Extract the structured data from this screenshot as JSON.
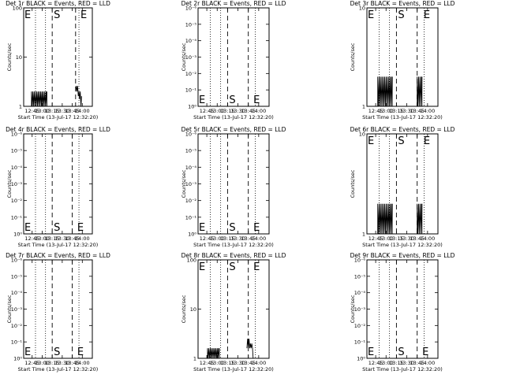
{
  "chart_data": [
    {
      "type": "line",
      "title": "Det 1r BLACK = Events, RED = LLD",
      "xlabel": "Start Time (13-Jul-17 12:32:20)",
      "ylabel": "Counts/sec",
      "yscale": "log",
      "yticks": [
        "1",
        "10",
        "100"
      ],
      "ylim": [
        1,
        100
      ],
      "xticks": [
        "12:45",
        "13:00",
        "13:15",
        "13:30",
        "13:45",
        "14:00"
      ],
      "xlim": [
        "12:32:20",
        "14:15"
      ],
      "markers": [
        {
          "text": "E",
          "x": "12:32:20"
        },
        {
          "text": "S",
          "x": "13:15"
        },
        {
          "text": "E",
          "x": "13:55"
        }
      ],
      "dotted_lines": [
        "12:50",
        "13:05",
        "13:55"
      ],
      "dashed_lines": [
        "13:15",
        "13:50"
      ],
      "series": [
        {
          "color": "#000000",
          "segments": [
            [
              [
                "12:44",
                1
              ],
              [
                "12:44",
                2
              ],
              [
                "12:45",
                1
              ],
              [
                "12:46",
                2
              ],
              [
                "12:47",
                1
              ],
              [
                "12:48",
                2
              ],
              [
                "12:49",
                1
              ],
              [
                "12:50",
                2
              ],
              [
                "12:51",
                1
              ],
              [
                "12:52",
                2
              ],
              [
                "12:53",
                1
              ],
              [
                "12:54",
                2
              ],
              [
                "12:55",
                1
              ],
              [
                "12:56",
                2
              ],
              [
                "12:57",
                1
              ],
              [
                "12:58",
                2
              ],
              [
                "12:59",
                1
              ],
              [
                "13:00",
                2
              ],
              [
                "13:01",
                1
              ],
              [
                "13:02",
                2
              ],
              [
                "13:03",
                1
              ],
              [
                "13:04",
                2
              ],
              [
                "13:05",
                1
              ],
              [
                "13:06",
                2
              ],
              [
                "13:07",
                1
              ],
              [
                "13:07",
                2
              ]
            ],
            [
              [
                "13:50",
                2
              ],
              [
                "13:51",
                2.6
              ],
              [
                "13:52",
                2
              ],
              [
                "13:53",
                2.6
              ],
              [
                "13:54",
                1.6
              ],
              [
                "13:55",
                2
              ],
              [
                "13:56",
                1.4
              ],
              [
                "13:57",
                2
              ],
              [
                "13:58",
                1
              ],
              [
                "13:59",
                1.6
              ]
            ]
          ]
        }
      ]
    },
    {
      "type": "line",
      "title": "Det 2r BLACK = Events, RED = LLD",
      "xlabel": "Start Time (13-Jul-17 12:32:20)",
      "ylabel": "Counts/sec",
      "yscale": "log",
      "yticks": [
        "10⁰",
        "10⁻¹",
        "10⁻²",
        "10⁻³",
        "10⁻⁴",
        "10⁻⁵",
        "10⁻⁶"
      ],
      "ylim": [
        1,
        1000000
      ],
      "xticks": [
        "12:45",
        "13:00",
        "13:15",
        "13:30",
        "13:45",
        "14:00"
      ],
      "xlim": [
        "12:32:20",
        "14:15"
      ],
      "markers": [
        {
          "text": "E",
          "x": "12:32:20"
        },
        {
          "text": "S",
          "x": "13:15"
        },
        {
          "text": "E",
          "x": "13:50"
        }
      ],
      "dotted_lines": [
        "12:50",
        "13:05",
        "13:55"
      ],
      "dashed_lines": [
        "13:15",
        "13:45"
      ],
      "series": []
    },
    {
      "type": "line",
      "title": "Det 3r BLACK = Events, RED = LLD",
      "xlabel": "Start Time (13-Jul-17 12:32:20)",
      "ylabel": "Counts/sec",
      "yscale": "log",
      "yticks": [
        "1",
        "10"
      ],
      "ylim": [
        1,
        10
      ],
      "xticks": [
        "12:45",
        "13:00",
        "13:15",
        "13:30",
        "13:45",
        "14:00"
      ],
      "xlim": [
        "12:32:20",
        "14:15"
      ],
      "markers": [
        {
          "text": "E",
          "x": "12:32:20"
        },
        {
          "text": "S",
          "x": "13:15"
        },
        {
          "text": "E",
          "x": "13:52"
        }
      ],
      "dotted_lines": [
        "12:50",
        "13:05",
        "13:55"
      ],
      "dashed_lines": [
        "13:15",
        "13:45"
      ],
      "series": [
        {
          "color": "#000000",
          "segments": [
            [
              [
                "12:48",
                1
              ],
              [
                "12:48",
                2
              ],
              [
                "12:49",
                1
              ],
              [
                "12:50",
                2
              ],
              [
                "12:51",
                1
              ],
              [
                "12:52",
                2
              ],
              [
                "12:53",
                1
              ],
              [
                "12:54",
                2
              ],
              [
                "12:55",
                1
              ],
              [
                "12:56",
                2
              ],
              [
                "12:57",
                1
              ],
              [
                "12:58",
                2
              ],
              [
                "12:59",
                1
              ],
              [
                "13:00",
                2
              ],
              [
                "13:01",
                1
              ],
              [
                "13:02",
                2
              ],
              [
                "13:03",
                1
              ],
              [
                "13:04",
                2
              ],
              [
                "13:05",
                1
              ],
              [
                "13:06",
                2
              ],
              [
                "13:07",
                1
              ],
              [
                "13:08",
                2
              ],
              [
                "13:09",
                1
              ],
              [
                "13:09",
                2
              ]
            ],
            [
              [
                "13:45",
                1
              ],
              [
                "13:45",
                2
              ],
              [
                "13:46",
                1
              ],
              [
                "13:47",
                2
              ],
              [
                "13:48",
                1
              ],
              [
                "13:49",
                2
              ],
              [
                "13:50",
                1
              ],
              [
                "13:51",
                2
              ],
              [
                "13:52",
                1
              ],
              [
                "13:52",
                2
              ]
            ]
          ]
        }
      ]
    },
    {
      "type": "line",
      "title": "Det 4r BLACK = Events, RED = LLD",
      "xlabel": "Start Time (13-Jul-17 12:32:20)",
      "ylabel": "Counts/sec",
      "yscale": "log",
      "yticks": [
        "10⁰",
        "10⁻¹",
        "10⁻²",
        "10⁻³",
        "10⁻⁴",
        "10⁻⁵",
        "10⁻⁶"
      ],
      "ylim": [
        1,
        1000000
      ],
      "xticks": [
        "12:45",
        "13:00",
        "13:15",
        "13:30",
        "13:45",
        "14:00"
      ],
      "xlim": [
        "12:32:20",
        "14:15"
      ],
      "markers": [
        {
          "text": "E",
          "x": "12:32:20"
        },
        {
          "text": "S",
          "x": "13:15"
        },
        {
          "text": "E",
          "x": "13:50"
        }
      ],
      "dotted_lines": [
        "12:50",
        "13:05",
        "13:55"
      ],
      "dashed_lines": [
        "13:15",
        "13:45"
      ],
      "series": []
    },
    {
      "type": "line",
      "title": "Det 5r BLACK = Events, RED = LLD",
      "xlabel": "Start Time (13-Jul-17 12:32:20)",
      "ylabel": "Counts/sec",
      "yscale": "log",
      "yticks": [
        "10⁰",
        "10⁻¹",
        "10⁻²",
        "10⁻³",
        "10⁻⁴",
        "10⁻⁵",
        "10⁻⁶"
      ],
      "ylim": [
        1,
        1000000
      ],
      "xticks": [
        "12:45",
        "13:00",
        "13:15",
        "13:30",
        "13:45",
        "14:00"
      ],
      "xlim": [
        "12:32:20",
        "14:15"
      ],
      "markers": [
        {
          "text": "E",
          "x": "12:32:20"
        },
        {
          "text": "S",
          "x": "13:15"
        },
        {
          "text": "E",
          "x": "13:50"
        }
      ],
      "dotted_lines": [
        "12:50",
        "13:05",
        "13:55"
      ],
      "dashed_lines": [
        "13:15",
        "13:45"
      ],
      "series": []
    },
    {
      "type": "line",
      "title": "Det 6r BLACK = Events, RED = LLD",
      "xlabel": "Start Time (13-Jul-17 12:32:20)",
      "ylabel": "Counts/sec",
      "yscale": "log",
      "yticks": [
        "1",
        "10"
      ],
      "ylim": [
        1,
        10
      ],
      "xticks": [
        "12:45",
        "13:00",
        "13:15",
        "13:30",
        "13:45",
        "14:00"
      ],
      "xlim": [
        "12:32:20",
        "14:15"
      ],
      "markers": [
        {
          "text": "E",
          "x": "12:32:20"
        },
        {
          "text": "S",
          "x": "13:15"
        },
        {
          "text": "E",
          "x": "13:52"
        }
      ],
      "dotted_lines": [
        "12:50",
        "13:05",
        "13:55"
      ],
      "dashed_lines": [
        "13:15",
        "13:45"
      ],
      "series": [
        {
          "color": "#000000",
          "segments": [
            [
              [
                "12:48",
                1
              ],
              [
                "12:48",
                2
              ],
              [
                "12:49",
                1
              ],
              [
                "12:50",
                2
              ],
              [
                "12:51",
                1
              ],
              [
                "12:52",
                2
              ],
              [
                "12:53",
                1
              ],
              [
                "12:54",
                2
              ],
              [
                "12:55",
                1
              ],
              [
                "12:56",
                2
              ],
              [
                "12:57",
                1
              ],
              [
                "12:58",
                2
              ],
              [
                "12:59",
                1
              ],
              [
                "13:00",
                2
              ],
              [
                "13:01",
                1
              ],
              [
                "13:02",
                2
              ],
              [
                "13:03",
                1
              ],
              [
                "13:04",
                2
              ],
              [
                "13:05",
                1
              ],
              [
                "13:06",
                2
              ],
              [
                "13:07",
                1
              ],
              [
                "13:08",
                2
              ],
              [
                "13:09",
                1
              ],
              [
                "13:09",
                2
              ]
            ],
            [
              [
                "13:45",
                1
              ],
              [
                "13:45",
                2
              ],
              [
                "13:46",
                1
              ],
              [
                "13:47",
                2
              ],
              [
                "13:48",
                1
              ],
              [
                "13:49",
                2
              ],
              [
                "13:50",
                1
              ],
              [
                "13:51",
                2
              ],
              [
                "13:52",
                1
              ],
              [
                "13:52",
                2
              ]
            ]
          ]
        }
      ]
    },
    {
      "type": "line",
      "title": "Det 7r BLACK = Events, RED = LLD",
      "xlabel": "Start Time (13-Jul-17 12:32:20)",
      "ylabel": "Counts/sec",
      "yscale": "log",
      "yticks": [
        "10⁰",
        "10⁻¹",
        "10⁻²",
        "10⁻³",
        "10⁻⁴",
        "10⁻⁵",
        "10⁻⁶"
      ],
      "ylim": [
        1,
        1000000
      ],
      "xticks": [
        "12:45",
        "13:00",
        "13:15",
        "13:30",
        "13:45",
        "14:00"
      ],
      "xlim": [
        "12:32:20",
        "14:15"
      ],
      "markers": [
        {
          "text": "E",
          "x": "12:32:20"
        },
        {
          "text": "S",
          "x": "13:15"
        },
        {
          "text": "E",
          "x": "13:50"
        }
      ],
      "dotted_lines": [
        "12:50",
        "13:05",
        "13:55"
      ],
      "dashed_lines": [
        "13:15",
        "13:45"
      ],
      "series": []
    },
    {
      "type": "line",
      "title": "Det 8r BLACK = Events, RED = LLD",
      "xlabel": "Start Time (13-Jul-17 12:32:20)",
      "ylabel": "Counts/sec",
      "yscale": "log",
      "yticks": [
        "1",
        "10",
        "100"
      ],
      "ylim": [
        1,
        100
      ],
      "xticks": [
        "12:45",
        "13:00",
        "13:15",
        "13:30",
        "13:45",
        "14:00"
      ],
      "xlim": [
        "12:32:20",
        "14:15"
      ],
      "markers": [
        {
          "text": "E",
          "x": "12:32:20"
        },
        {
          "text": "S",
          "x": "13:15"
        },
        {
          "text": "E",
          "x": "13:50"
        }
      ],
      "dotted_lines": [
        "12:50",
        "13:05",
        "13:55"
      ],
      "dashed_lines": [
        "13:15",
        "13:45"
      ],
      "series": [
        {
          "color": "#000000",
          "segments": [
            [
              [
                "12:46",
                1
              ],
              [
                "12:46",
                1.6
              ],
              [
                "12:47",
                1
              ],
              [
                "12:48",
                1.6
              ],
              [
                "12:49",
                1
              ],
              [
                "12:50",
                1.6
              ],
              [
                "12:51",
                1
              ],
              [
                "12:52",
                1.6
              ],
              [
                "12:53",
                1
              ],
              [
                "12:54",
                1.6
              ],
              [
                "12:55",
                1
              ],
              [
                "12:56",
                1.6
              ],
              [
                "12:57",
                1
              ],
              [
                "12:58",
                1.6
              ],
              [
                "12:59",
                1
              ],
              [
                "13:00",
                1.6
              ],
              [
                "13:01",
                1
              ],
              [
                "13:02",
                1.6
              ],
              [
                "13:03",
                1
              ],
              [
                "13:03",
                1.6
              ]
            ],
            [
              [
                "13:43",
                1.6
              ],
              [
                "13:44",
                2.5
              ],
              [
                "13:45",
                1.6
              ],
              [
                "13:46",
                2.5
              ],
              [
                "13:47",
                1.6
              ],
              [
                "13:48",
                2
              ],
              [
                "13:49",
                1.6
              ],
              [
                "13:50",
                2
              ],
              [
                "13:51",
                1.6
              ],
              [
                "13:52",
                1
              ]
            ]
          ]
        }
      ]
    },
    {
      "type": "line",
      "title": "Det 9r BLACK = Events, RED = LLD",
      "xlabel": "Start Time (13-Jul-17 12:32:20)",
      "ylabel": "Counts/sec",
      "yscale": "log",
      "yticks": [
        "10⁰",
        "10⁻¹",
        "10⁻²",
        "10⁻³",
        "10⁻⁴",
        "10⁻⁵",
        "10⁻⁶"
      ],
      "ylim": [
        1,
        1000000
      ],
      "xticks": [
        "12:45",
        "13:00",
        "13:15",
        "13:30",
        "13:45",
        "14:00"
      ],
      "xlim": [
        "12:32:20",
        "14:15"
      ],
      "markers": [
        {
          "text": "E",
          "x": "12:32:20"
        },
        {
          "text": "S",
          "x": "13:15"
        },
        {
          "text": "E",
          "x": "13:50"
        }
      ],
      "dotted_lines": [
        "12:50",
        "13:05",
        "13:55"
      ],
      "dashed_lines": [
        "13:15",
        "13:45"
      ],
      "series": []
    }
  ]
}
